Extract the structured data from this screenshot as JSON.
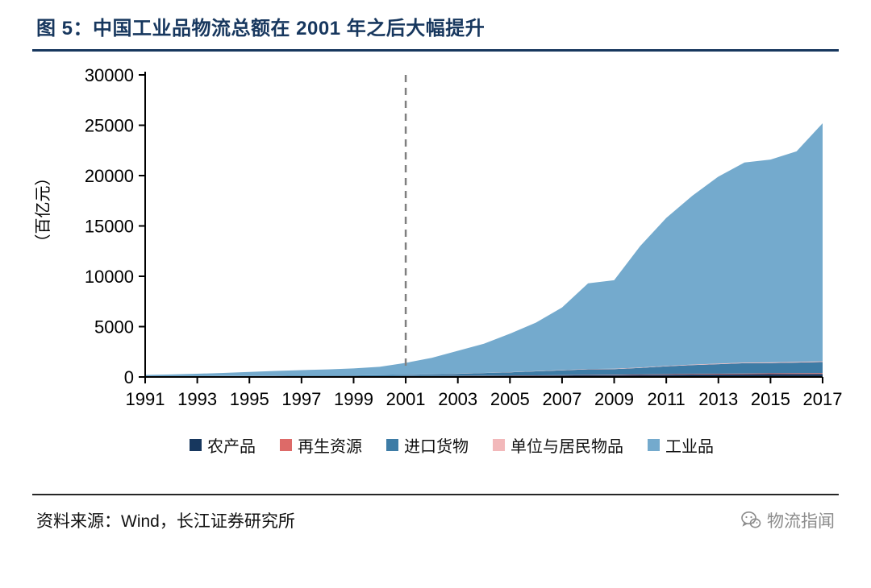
{
  "figure": {
    "title": "图 5：中国工业品物流总额在 2001 年之后大幅提升"
  },
  "footer": {
    "source": "资料来源：Wind，长江证券研究所",
    "brand": "物流指闻"
  },
  "icons": {
    "brand_icon": "wechat-chat-bubbles-icon"
  },
  "colors": {
    "title": "#17375e",
    "axis": "#000000",
    "vline": "#7f7f7f",
    "title_rule": "#17375e",
    "footer_rule": "#262626"
  },
  "chart_data": {
    "type": "area",
    "stacked": true,
    "title": "",
    "xlabel": "",
    "ylabel": "（百亿元）",
    "ylim": [
      0,
      30000
    ],
    "yticks": [
      0,
      5000,
      10000,
      15000,
      20000,
      25000,
      30000
    ],
    "xticks": [
      1991,
      1993,
      1995,
      1997,
      1999,
      2001,
      2003,
      2005,
      2007,
      2009,
      2011,
      2013,
      2015,
      2017
    ],
    "x": [
      1991,
      1992,
      1993,
      1994,
      1995,
      1996,
      1997,
      1998,
      1999,
      2000,
      2001,
      2002,
      2003,
      2004,
      2005,
      2006,
      2007,
      2008,
      2009,
      2010,
      2011,
      2012,
      2013,
      2014,
      2015,
      2016,
      2017
    ],
    "grid": false,
    "legend_position": "bottom",
    "vline": {
      "x": 2001,
      "style": "dashed",
      "color": "#7f7f7f"
    },
    "series": [
      {
        "name": "农产品",
        "color": "#17375e",
        "values": [
          30,
          32,
          35,
          40,
          45,
          50,
          55,
          60,
          65,
          70,
          80,
          90,
          100,
          110,
          120,
          135,
          150,
          165,
          180,
          200,
          220,
          240,
          255,
          270,
          280,
          290,
          300
        ]
      },
      {
        "name": "再生资源",
        "color": "#dd6a68",
        "values": [
          2,
          2,
          3,
          3,
          4,
          5,
          5,
          6,
          7,
          8,
          10,
          12,
          15,
          18,
          22,
          26,
          30,
          35,
          40,
          48,
          55,
          62,
          68,
          74,
          78,
          82,
          85
        ]
      },
      {
        "name": "进口货物",
        "color": "#3e7ca6",
        "values": [
          20,
          25,
          30,
          40,
          50,
          60,
          65,
          70,
          80,
          100,
          130,
          160,
          200,
          260,
          320,
          400,
          480,
          560,
          560,
          650,
          780,
          880,
          950,
          1020,
          1020,
          1060,
          1100
        ]
      },
      {
        "name": "单位与居民物品",
        "color": "#f2b8ba",
        "values": [
          1,
          1,
          2,
          2,
          3,
          3,
          4,
          4,
          5,
          6,
          8,
          10,
          12,
          15,
          18,
          22,
          26,
          30,
          34,
          40,
          46,
          52,
          58,
          64,
          68,
          72,
          76
        ]
      },
      {
        "name": "工业品",
        "color": "#74aacd",
        "values": [
          150,
          190,
          250,
          315,
          400,
          480,
          550,
          610,
          690,
          820,
          1170,
          1630,
          2270,
          2900,
          3820,
          4820,
          6210,
          8510,
          8790,
          12060,
          14700,
          16770,
          18570,
          19870,
          20150,
          20900,
          23640
        ]
      }
    ],
    "stack_totals_reference": [
      203,
      250,
      320,
      400,
      500,
      600,
      680,
      750,
      850,
      1000,
      1400,
      1900,
      2600,
      3300,
      4300,
      5400,
      6900,
      9300,
      9600,
      13000,
      15800,
      18000,
      19900,
      21300,
      21600,
      22400,
      25200
    ]
  }
}
